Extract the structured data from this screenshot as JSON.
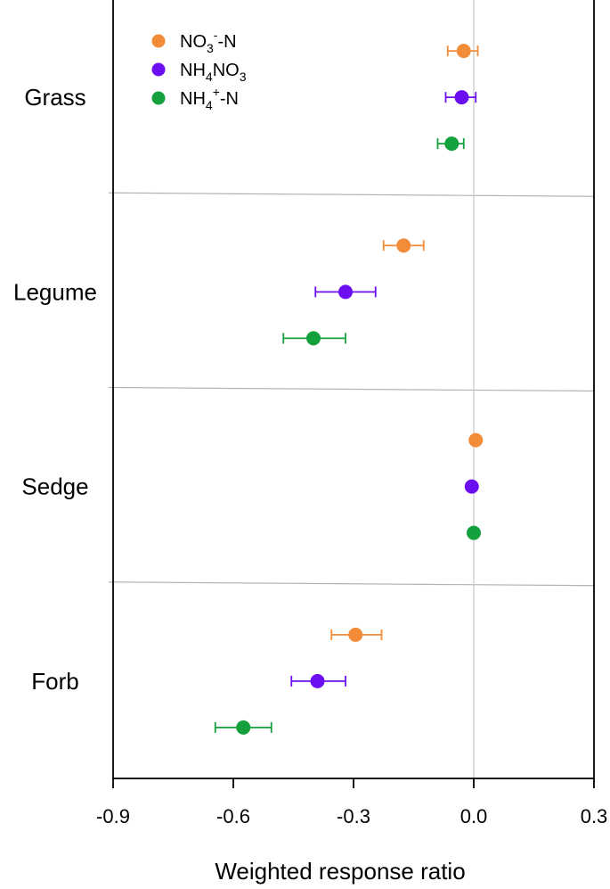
{
  "chart_data": {
    "type": "scatter",
    "xlabel": "Weighted response ratio",
    "xlim": [
      -0.9,
      0.3
    ],
    "xticks": [
      "-0.9",
      "-0.6",
      "-0.3",
      "0.0",
      "0.3"
    ],
    "xtick_values": [
      -0.9,
      -0.6,
      -0.3,
      0.0,
      0.3
    ],
    "reference_line_x": 0.0,
    "categories": [
      "Grass",
      "Legume",
      "Sedge",
      "Forb"
    ],
    "legend_position": "top-left",
    "series": [
      {
        "name": "NO3--N",
        "legend_base": "NO",
        "legend_sub": "3",
        "legend_sup": "-",
        "legend_tail": "-N",
        "color": "#F28C38",
        "values": [
          -0.025,
          -0.175,
          0.005,
          -0.295
        ],
        "ci_low": [
          -0.065,
          -0.225,
          0.005,
          -0.355
        ],
        "ci_high": [
          0.01,
          -0.125,
          0.005,
          -0.23
        ]
      },
      {
        "name": "NH4NO3",
        "legend_base": "NH",
        "legend_sub": "4",
        "legend_sup": "",
        "legend_tail": "NO",
        "legend_sub2": "3",
        "color": "#6B0FF0",
        "values": [
          -0.03,
          -0.32,
          -0.005,
          -0.39
        ],
        "ci_low": [
          -0.07,
          -0.395,
          -0.01,
          -0.455
        ],
        "ci_high": [
          0.005,
          -0.245,
          0.0,
          -0.32
        ]
      },
      {
        "name": "NH4+-N",
        "legend_base": "NH",
        "legend_sub": "4",
        "legend_sup": "+",
        "legend_tail": "-N",
        "color": "#14A03C",
        "values": [
          -0.055,
          -0.4,
          0.0,
          -0.575
        ],
        "ci_low": [
          -0.09,
          -0.475,
          0.0,
          -0.645
        ],
        "ci_high": [
          -0.025,
          -0.32,
          0.0,
          -0.505
        ]
      }
    ]
  }
}
